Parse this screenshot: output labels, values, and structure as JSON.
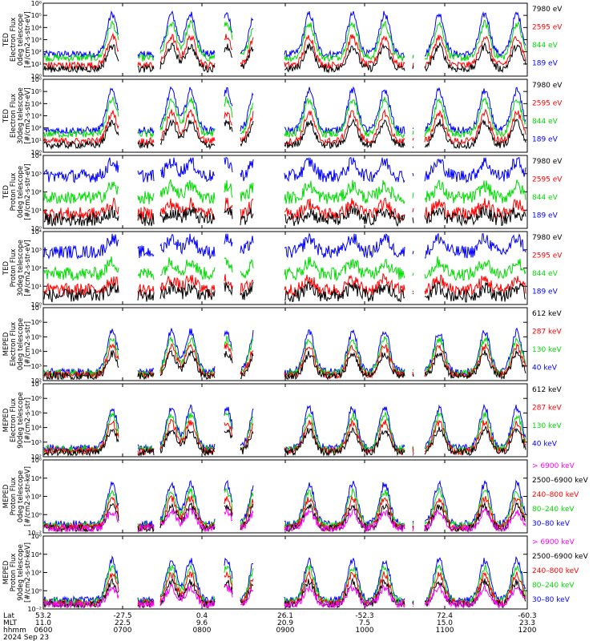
{
  "chart_data": [
    {
      "type": "line",
      "ylabel": [
        "TED",
        "Electron Flux",
        "0deg telescope",
        "[#/cm2-s-str-eV]"
      ],
      "yticks": [
        "10⁶",
        "10⁵",
        "10⁴",
        "10³",
        "10²",
        "10¹",
        "10⁰"
      ],
      "yscale": "log",
      "ylim": [
        1,
        1000000
      ],
      "legend": [
        {
          "label": "7980 eV",
          "color": "#000000"
        },
        {
          "label": "2595 eV",
          "color": "#ff0000"
        },
        {
          "label": "844 eV",
          "color": "#00dd00"
        },
        {
          "label": "189 eV",
          "color": "#0000ff"
        }
      ]
    },
    {
      "type": "line",
      "ylabel": [
        "TED",
        "Electron Flux",
        "30deg telescope",
        "[#/cm2-s-str-eV]"
      ],
      "yticks": [
        "10⁶",
        "10⁵",
        "10⁴",
        "10³",
        "10²",
        "10¹",
        "10⁰"
      ],
      "yscale": "log",
      "ylim": [
        1,
        1000000
      ],
      "legend": [
        {
          "label": "7980 eV",
          "color": "#000000"
        },
        {
          "label": "2595 eV",
          "color": "#ff0000"
        },
        {
          "label": "844 eV",
          "color": "#00dd00"
        },
        {
          "label": "189 eV",
          "color": "#0000ff"
        }
      ]
    },
    {
      "type": "line",
      "ylabel": [
        "TED",
        "Proton Flux",
        "0deg telescope",
        "[#/cm2-s-str-eV]"
      ],
      "yticks": [
        "10⁴",
        "10³",
        "10²",
        "10¹",
        "10⁰"
      ],
      "yscale": "log",
      "ylim": [
        1,
        10000
      ],
      "legend": [
        {
          "label": "7980 eV",
          "color": "#000000"
        },
        {
          "label": "2595 eV",
          "color": "#ff0000"
        },
        {
          "label": "844 eV",
          "color": "#00dd00"
        },
        {
          "label": "189 eV",
          "color": "#0000ff"
        }
      ]
    },
    {
      "type": "line",
      "ylabel": [
        "TED",
        "Proton Flux",
        "30deg telescope",
        "[#/cm2-s-str-eV]"
      ],
      "yticks": [
        "10⁴",
        "10³",
        "10²",
        "10¹",
        "10⁰"
      ],
      "yscale": "log",
      "ylim": [
        1,
        10000
      ],
      "legend": [
        {
          "label": "7980 eV",
          "color": "#000000"
        },
        {
          "label": "2595 eV",
          "color": "#ff0000"
        },
        {
          "label": "844 eV",
          "color": "#00dd00"
        },
        {
          "label": "189 eV",
          "color": "#0000ff"
        }
      ]
    },
    {
      "type": "line",
      "ylabel": [
        "MEPED",
        "Electron Flux",
        "0deg telescope",
        "[#/cm2-s-str]"
      ],
      "yticks": [
        "10⁷",
        "10⁶",
        "10⁵",
        "10⁴",
        "10³",
        "10²"
      ],
      "yscale": "log",
      "ylim": [
        100,
        10000000
      ],
      "legend": [
        {
          "label": "612 keV",
          "color": "#000000"
        },
        {
          "label": "287 keV",
          "color": "#ff0000"
        },
        {
          "label": "130 keV",
          "color": "#00dd00"
        },
        {
          "label": "40 keV",
          "color": "#0000ff"
        }
      ]
    },
    {
      "type": "line",
      "ylabel": [
        "MEPED",
        "Electron Flux",
        "90deg telescope",
        "[#/cm2-s-str]"
      ],
      "yticks": [
        "10⁷",
        "10⁶",
        "10⁵",
        "10⁴",
        "10³",
        "10²"
      ],
      "yscale": "log",
      "ylim": [
        100,
        10000000
      ],
      "legend": [
        {
          "label": "612 keV",
          "color": "#000000"
        },
        {
          "label": "287 keV",
          "color": "#ff0000"
        },
        {
          "label": "130 keV",
          "color": "#00dd00"
        },
        {
          "label": "40 keV",
          "color": "#0000ff"
        }
      ]
    },
    {
      "type": "line",
      "ylabel": [
        "MEPED",
        "Proton Flux",
        "0deg telescope",
        "[#/cm2-s-str-keV]"
      ],
      "yticks": [
        "10⁶",
        "10⁴",
        "10²",
        "10⁰",
        "10⁻²"
      ],
      "yscale": "log",
      "ylim": [
        0.01,
        1000000
      ],
      "legend": [
        {
          "label": "> 6900 keV",
          "color": "#ff00ff"
        },
        {
          "label": "2500–6900 keV",
          "color": "#000000"
        },
        {
          "label": "240–800 keV",
          "color": "#ff0000"
        },
        {
          "label": "80–240 keV",
          "color": "#00dd00"
        },
        {
          "label": "30–80 keV",
          "color": "#0000ff"
        }
      ]
    },
    {
      "type": "line",
      "ylabel": [
        "MEPED",
        "Proton Flux",
        "90deg telescope",
        "[#/cm2-s-str-keV]"
      ],
      "yticks": [
        "10⁶",
        "10⁴",
        "10²",
        "10⁰",
        "10⁻²"
      ],
      "yscale": "log",
      "ylim": [
        0.01,
        1000000
      ],
      "legend": [
        {
          "label": "> 6900 keV",
          "color": "#ff00ff"
        },
        {
          "label": "2500–6900 keV",
          "color": "#000000"
        },
        {
          "label": "240–800 keV",
          "color": "#ff0000"
        },
        {
          "label": "80–240 keV",
          "color": "#00dd00"
        },
        {
          "label": "30–80 keV",
          "color": "#0000ff"
        }
      ]
    }
  ],
  "footer": {
    "row_labels": [
      "Lat",
      "MLT",
      "hhmm",
      "2024 Sep 23"
    ],
    "lat": [
      "53.2",
      "-27.5",
      "0.4",
      "26.1",
      "-52.3",
      "72.4",
      "-60.3"
    ],
    "mlt": [
      "11.0",
      "22.5",
      "9.6",
      "20.9",
      "7.5",
      "15.0",
      "23.3"
    ],
    "hhmm": [
      "0600",
      "0700",
      "0800",
      "0900",
      "1000",
      "1100",
      "1200"
    ]
  }
}
